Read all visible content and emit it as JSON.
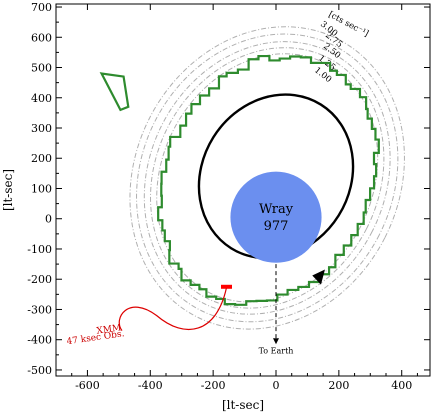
{
  "chart_data": {
    "type": "scatter",
    "xlabel": "[lt-sec]",
    "ylabel": "[lt-sec]",
    "xlim": [
      -700,
      490
    ],
    "ylim": [
      -520,
      710
    ],
    "xticks": [
      -600,
      -400,
      -200,
      0,
      200,
      400
    ],
    "yticks": [
      700,
      600,
      500,
      400,
      300,
      200,
      100,
      0,
      -100,
      -200,
      -300,
      -400,
      -500
    ],
    "grid": false,
    "star": {
      "label_line1": "Wray",
      "label_line2": "977",
      "cx": 0,
      "cy": 5,
      "r": 145,
      "color": "#6b8fef"
    },
    "orbit": {
      "cx": 0,
      "cy": 140,
      "rx": 235,
      "ry": 280,
      "angle_deg": -32,
      "color": "#000000"
    },
    "contours": {
      "unit_label": "[cts sec⁻¹]",
      "levels": [
        "3.00",
        "2.75",
        "2.50",
        "1.25",
        "1.00"
      ],
      "cx": -28,
      "cy": 135,
      "rx": [
        420,
        400,
        375,
        355,
        335
      ],
      "ry": [
        515,
        490,
        465,
        445,
        425
      ],
      "angle_deg": -27,
      "color": "#b0b0b0"
    },
    "envelope": {
      "color": "#2e8b2e",
      "cx": -25,
      "cy": 128,
      "rx": 320,
      "ry": 430,
      "angle_deg": -27,
      "arm_start": [
        -475,
        480
      ],
      "arm_end": [
        -545,
        470
      ],
      "arm_width": 18
    },
    "xmm_segment": {
      "x": [
        -175,
        -140
      ],
      "y": [
        -225,
        -225
      ],
      "color": "#ff0000"
    },
    "annotations": {
      "xmm_line1": "XMM",
      "xmm_line2": "47 ksec Obs.",
      "xmm_color": "#cc0000",
      "earth": "To Earth"
    }
  }
}
